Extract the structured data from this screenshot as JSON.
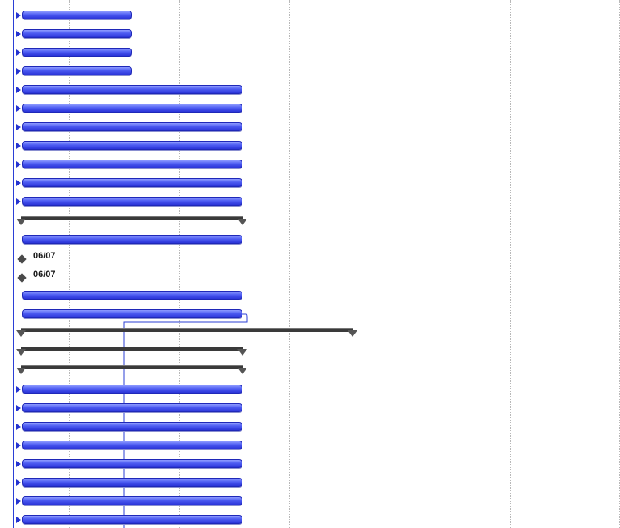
{
  "gantt": {
    "milestones": [
      {
        "date": "06/07"
      },
      {
        "date": "06/07"
      }
    ],
    "colors": {
      "task": "#3b48e8",
      "summary": "#3a3a3a",
      "milestone": "#4a4a4a",
      "today_line": "#2b3fd6",
      "gridline": "#b8b8b8"
    }
  }
}
